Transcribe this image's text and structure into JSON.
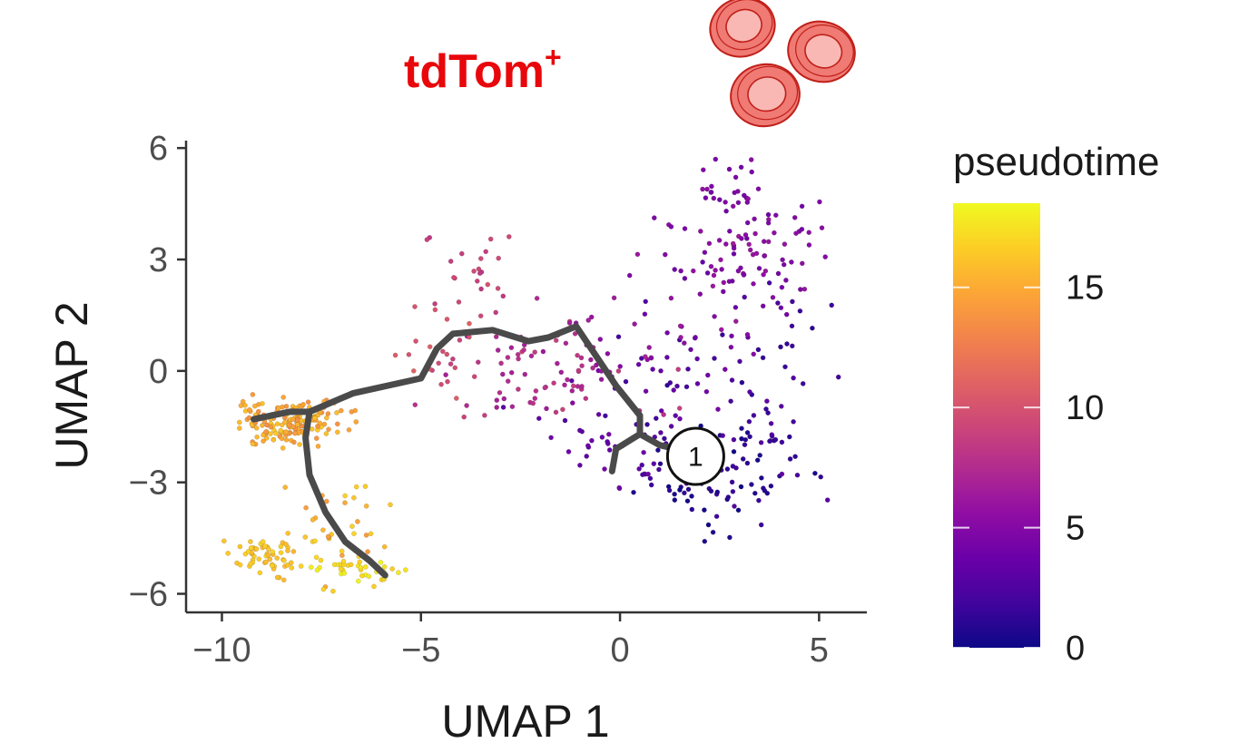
{
  "colors": {
    "title": "#e8070b",
    "trajectory": "#4a4a4a",
    "axis": "#333333",
    "tick_label": "#4d4d4d",
    "cell_icon_fill": "#f07a74",
    "cell_icon_stroke": "#c0201a",
    "cell_icon_nucleus": "#f9b8b4",
    "colorscale": [
      "#0d0887",
      "#41049d",
      "#6a00a8",
      "#8f0da4",
      "#b12a90",
      "#cc4778",
      "#e16462",
      "#f2844b",
      "#fca636",
      "#fcce25",
      "#f0f921"
    ]
  },
  "header": {
    "icon": "cell-cluster-icon"
  },
  "chart_data": {
    "type": "scatter",
    "title": "tdTom",
    "title_superscript": "+",
    "xlabel": "UMAP 1",
    "ylabel": "UMAP 2",
    "xlim": [
      -10.9,
      6.2
    ],
    "ylim": [
      -6.5,
      6.2
    ],
    "xticks": [
      -10,
      -5,
      0,
      5
    ],
    "yticks": [
      -6,
      -3,
      0,
      3,
      6
    ],
    "x_tick_labels": [
      "−10",
      "−5",
      "0",
      "5"
    ],
    "y_tick_labels": [
      "−6",
      "−3",
      "0",
      "3",
      "6"
    ],
    "grid": false,
    "color_variable": "pseudotime",
    "legend": {
      "title": "pseudotime",
      "placement": "right",
      "range": [
        0,
        18.5
      ],
      "ticks": [
        0,
        5,
        10,
        15
      ],
      "tick_labels": [
        "0",
        "5",
        "10",
        "15"
      ]
    },
    "clusters": [
      {
        "cx": 2.4,
        "cy": -2.9,
        "sx": 1.0,
        "sy": 0.7,
        "n": 75,
        "t": [
          0,
          2
        ]
      },
      {
        "cx": 3.6,
        "cy": -1.7,
        "sx": 0.8,
        "sy": 0.8,
        "n": 28,
        "t": [
          1,
          3
        ]
      },
      {
        "cx": 0.9,
        "cy": -1.9,
        "sx": 1.1,
        "sy": 0.8,
        "n": 40,
        "t": [
          1.5,
          4
        ]
      },
      {
        "cx": -0.5,
        "cy": -2.3,
        "sx": 0.6,
        "sy": 0.5,
        "n": 18,
        "t": [
          3,
          4.5
        ]
      },
      {
        "cx": 1.6,
        "cy": 0.2,
        "sx": 1.2,
        "sy": 0.8,
        "n": 35,
        "t": [
          2,
          4.5
        ]
      },
      {
        "cx": 3.9,
        "cy": 1.0,
        "sx": 0.8,
        "sy": 0.9,
        "n": 18,
        "t": [
          1,
          3
        ]
      },
      {
        "cx": 2.6,
        "cy": 2.6,
        "sx": 1.1,
        "sy": 1.2,
        "n": 85,
        "t": [
          3.5,
          6.5
        ]
      },
      {
        "cx": 2.4,
        "cy": 4.9,
        "sx": 0.7,
        "sy": 0.5,
        "n": 22,
        "t": [
          4,
          6
        ]
      },
      {
        "cx": 3.8,
        "cy": 3.4,
        "sx": 0.5,
        "sy": 0.7,
        "n": 20,
        "t": [
          4,
          6
        ]
      },
      {
        "cx": -0.4,
        "cy": 0.5,
        "sx": 0.8,
        "sy": 0.6,
        "n": 28,
        "t": [
          5,
          7
        ]
      },
      {
        "cx": -2.0,
        "cy": 0.0,
        "sx": 1.3,
        "sy": 0.7,
        "n": 70,
        "t": [
          6.5,
          9
        ]
      },
      {
        "cx": -3.8,
        "cy": 2.6,
        "sx": 0.5,
        "sy": 0.5,
        "n": 22,
        "t": [
          8,
          10
        ]
      },
      {
        "cx": -4.6,
        "cy": 0.4,
        "sx": 0.5,
        "sy": 0.6,
        "n": 25,
        "t": [
          9,
          11
        ]
      },
      {
        "cx": -8.3,
        "cy": -1.4,
        "sx": 0.7,
        "sy": 0.3,
        "n": 170,
        "t": [
          13.5,
          16.5
        ]
      },
      {
        "cx": -7.2,
        "cy": -4.1,
        "sx": 0.6,
        "sy": 0.7,
        "n": 35,
        "t": [
          14,
          17
        ]
      },
      {
        "cx": -8.9,
        "cy": -5.0,
        "sx": 0.4,
        "sy": 0.25,
        "n": 55,
        "t": [
          15.5,
          17
        ]
      },
      {
        "cx": -6.6,
        "cy": -5.4,
        "sx": 0.55,
        "sy": 0.25,
        "n": 40,
        "t": [
          16.5,
          18.5
        ]
      }
    ],
    "trajectory": [
      [
        [
          -9.2,
          -1.3
        ],
        [
          -8.3,
          -1.1
        ],
        [
          -7.8,
          -1.1
        ],
        [
          -6.7,
          -0.6
        ],
        [
          -5.0,
          -0.2
        ],
        [
          -4.6,
          0.6
        ],
        [
          -4.2,
          1.0
        ],
        [
          -3.2,
          1.1
        ],
        [
          -2.3,
          0.8
        ],
        [
          -1.8,
          0.9
        ],
        [
          -1.1,
          1.2
        ],
        [
          -0.6,
          0.4
        ],
        [
          -0.1,
          -0.4
        ],
        [
          0.5,
          -1.2
        ],
        [
          0.5,
          -1.7
        ],
        [
          1.0,
          -2.0
        ],
        [
          1.8,
          -2.2
        ]
      ],
      [
        [
          -7.8,
          -1.1
        ],
        [
          -7.9,
          -1.8
        ],
        [
          -7.8,
          -2.8
        ],
        [
          -7.4,
          -3.8
        ],
        [
          -6.9,
          -4.6
        ],
        [
          -6.3,
          -5.1
        ],
        [
          -5.9,
          -5.5
        ]
      ],
      [
        [
          0.5,
          -1.7
        ],
        [
          -0.1,
          -2.1
        ],
        [
          -0.2,
          -2.7
        ]
      ]
    ],
    "root_marker": {
      "label": "1",
      "x": 1.9,
      "y": -2.3
    }
  }
}
